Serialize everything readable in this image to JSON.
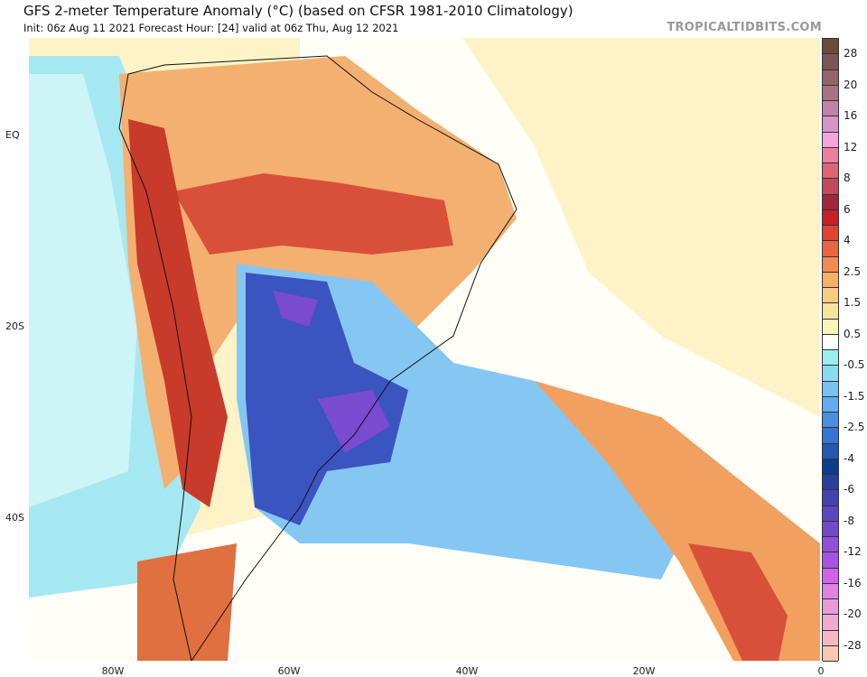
{
  "header": {
    "title": "GFS 2-meter Temperature Anomaly (°C) (based on CFSR 1981-2010 Climatology)",
    "subtitle": "Init: 06z Aug 11 2021   Forecast Hour: [24]   valid at 06z Thu, Aug 12 2021",
    "watermark": "TROPICALTIDBITS.COM"
  },
  "axes": {
    "lat_labels": [
      "EQ",
      "20S",
      "40S"
    ],
    "lon_labels": [
      "80W",
      "60W",
      "40W",
      "20W",
      "0"
    ]
  },
  "colorbar": {
    "labels": [
      "28",
      "20",
      "16",
      "12",
      "8",
      "6",
      "4",
      "2.5",
      "1.5",
      "0.5",
      "-0.5",
      "-1.5",
      "-2.5",
      "-4",
      "-6",
      "-8",
      "-12",
      "-16",
      "-20",
      "-28"
    ],
    "colors": [
      "#6b4a38",
      "#7d5552",
      "#956468",
      "#a87282",
      "#c084a4",
      "#d894c4",
      "#f4a4dc",
      "#ec7ea0",
      "#dc6474",
      "#c44a5a",
      "#a0283a",
      "#c82028",
      "#e04432",
      "#ea6440",
      "#f28a52",
      "#f8b064",
      "#f8cc80",
      "#f8e29c",
      "#faf4b8",
      "#ffffff",
      "#98f0ee",
      "#88dcf2",
      "#74c4f2",
      "#62acf0",
      "#4a8ee2",
      "#3474d2",
      "#2258b2",
      "#0c3c8c",
      "#2a3e9e",
      "#4242b2",
      "#5a48c2",
      "#7448ca",
      "#9050d8",
      "#a852e2",
      "#d062ea",
      "#e082e2",
      "#e89ad8",
      "#f0aad0",
      "#f6b8c2",
      "#f8c8b0"
    ]
  },
  "map": {
    "ocean_color": "#fdf3c6",
    "cold_color": "#3a54c0",
    "warm_color": "#e0552e"
  }
}
